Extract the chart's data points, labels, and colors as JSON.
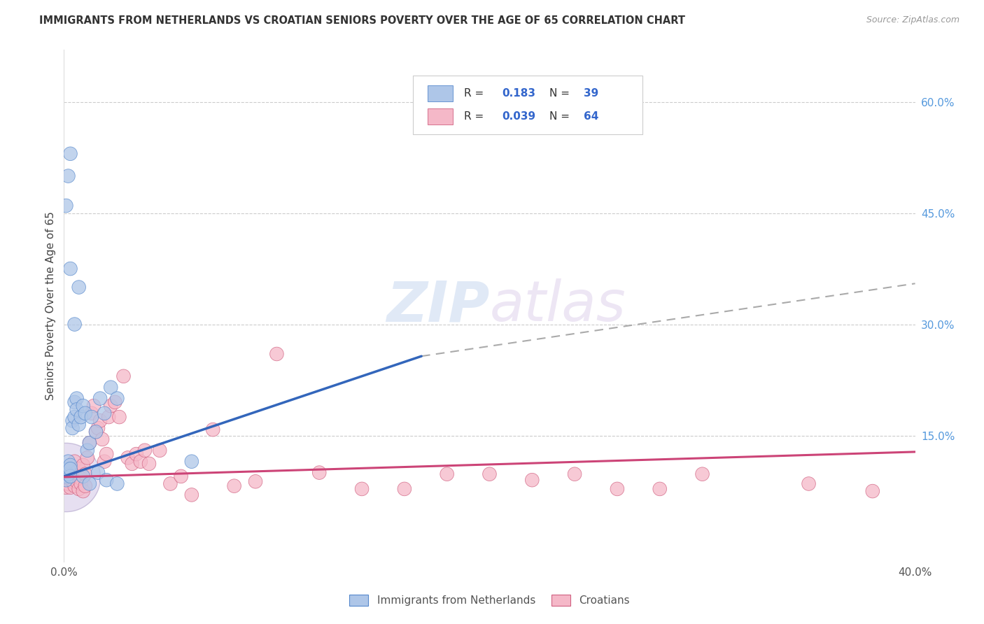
{
  "title": "IMMIGRANTS FROM NETHERLANDS VS CROATIAN SENIORS POVERTY OVER THE AGE OF 65 CORRELATION CHART",
  "source": "Source: ZipAtlas.com",
  "ylabel": "Seniors Poverty Over the Age of 65",
  "right_yticks": [
    "60.0%",
    "45.0%",
    "30.0%",
    "15.0%"
  ],
  "right_ytick_vals": [
    0.6,
    0.45,
    0.3,
    0.15
  ],
  "xlim": [
    0.0,
    0.4
  ],
  "ylim": [
    -0.02,
    0.67
  ],
  "legend_r1": "R =  0.183",
  "legend_n1": "N = 39",
  "legend_r2": "R =  0.039",
  "legend_n2": "N = 64",
  "blue_fill": "#aec6e8",
  "blue_edge": "#5588cc",
  "pink_fill": "#f5b8c8",
  "pink_edge": "#d06080",
  "blue_line_color": "#3366bb",
  "pink_line_color": "#cc4477",
  "gray_dash_color": "#aaaaaa",
  "nl_blue_line_x": [
    0.0,
    0.168
  ],
  "nl_blue_line_y": [
    0.095,
    0.257
  ],
  "gray_line_x": [
    0.168,
    0.4
  ],
  "gray_line_y": [
    0.257,
    0.355
  ],
  "cr_pink_line_x": [
    0.0,
    0.4
  ],
  "cr_pink_line_y": [
    0.094,
    0.128
  ],
  "netherlands_x": [
    0.001,
    0.001,
    0.001,
    0.002,
    0.002,
    0.002,
    0.003,
    0.003,
    0.003,
    0.004,
    0.004,
    0.005,
    0.005,
    0.006,
    0.006,
    0.007,
    0.008,
    0.009,
    0.01,
    0.011,
    0.012,
    0.013,
    0.015,
    0.017,
    0.019,
    0.022,
    0.025,
    0.001,
    0.002,
    0.003,
    0.005,
    0.007,
    0.009,
    0.012,
    0.016,
    0.02,
    0.025,
    0.06,
    0.003
  ],
  "netherlands_y": [
    0.095,
    0.1,
    0.09,
    0.105,
    0.098,
    0.115,
    0.11,
    0.095,
    0.105,
    0.17,
    0.16,
    0.195,
    0.175,
    0.2,
    0.185,
    0.165,
    0.175,
    0.19,
    0.18,
    0.13,
    0.14,
    0.175,
    0.155,
    0.2,
    0.18,
    0.215,
    0.2,
    0.46,
    0.5,
    0.375,
    0.3,
    0.35,
    0.095,
    0.085,
    0.1,
    0.09,
    0.085,
    0.115,
    0.53
  ],
  "netherlands_sizes": [
    200,
    200,
    200,
    200,
    200,
    200,
    200,
    200,
    200,
    200,
    200,
    200,
    200,
    200,
    200,
    200,
    200,
    200,
    200,
    200,
    200,
    200,
    200,
    200,
    200,
    200,
    200,
    200,
    200,
    200,
    200,
    200,
    200,
    200,
    200,
    200,
    200,
    200,
    200
  ],
  "croatians_x": [
    0.001,
    0.001,
    0.002,
    0.002,
    0.002,
    0.003,
    0.003,
    0.003,
    0.004,
    0.004,
    0.005,
    0.005,
    0.005,
    0.006,
    0.006,
    0.007,
    0.007,
    0.008,
    0.008,
    0.009,
    0.009,
    0.01,
    0.01,
    0.011,
    0.012,
    0.013,
    0.014,
    0.015,
    0.016,
    0.017,
    0.018,
    0.019,
    0.02,
    0.021,
    0.022,
    0.024,
    0.026,
    0.028,
    0.03,
    0.032,
    0.034,
    0.036,
    0.038,
    0.04,
    0.045,
    0.05,
    0.055,
    0.06,
    0.07,
    0.08,
    0.09,
    0.1,
    0.12,
    0.14,
    0.16,
    0.18,
    0.2,
    0.22,
    0.24,
    0.26,
    0.28,
    0.3,
    0.35,
    0.38
  ],
  "croatians_y": [
    0.09,
    0.08,
    0.095,
    0.085,
    0.105,
    0.09,
    0.1,
    0.08,
    0.095,
    0.088,
    0.1,
    0.082,
    0.115,
    0.095,
    0.088,
    0.105,
    0.078,
    0.092,
    0.085,
    0.11,
    0.075,
    0.098,
    0.082,
    0.12,
    0.14,
    0.18,
    0.19,
    0.155,
    0.16,
    0.17,
    0.145,
    0.115,
    0.125,
    0.175,
    0.19,
    0.195,
    0.175,
    0.23,
    0.12,
    0.112,
    0.125,
    0.115,
    0.13,
    0.112,
    0.13,
    0.085,
    0.095,
    0.07,
    0.158,
    0.082,
    0.088,
    0.26,
    0.1,
    0.078,
    0.078,
    0.098,
    0.098,
    0.09,
    0.098,
    0.078,
    0.078,
    0.098,
    0.085,
    0.075
  ],
  "croatians_sizes": [
    200,
    200,
    200,
    200,
    200,
    200,
    200,
    200,
    200,
    200,
    200,
    200,
    200,
    200,
    200,
    200,
    200,
    200,
    200,
    200,
    200,
    200,
    200,
    200,
    200,
    200,
    200,
    200,
    200,
    200,
    200,
    200,
    200,
    200,
    200,
    200,
    200,
    200,
    200,
    200,
    200,
    200,
    200,
    200,
    200,
    200,
    200,
    200,
    200,
    200,
    200,
    200,
    200,
    200,
    200,
    200,
    200,
    200,
    200,
    200,
    200,
    200,
    200,
    200
  ]
}
